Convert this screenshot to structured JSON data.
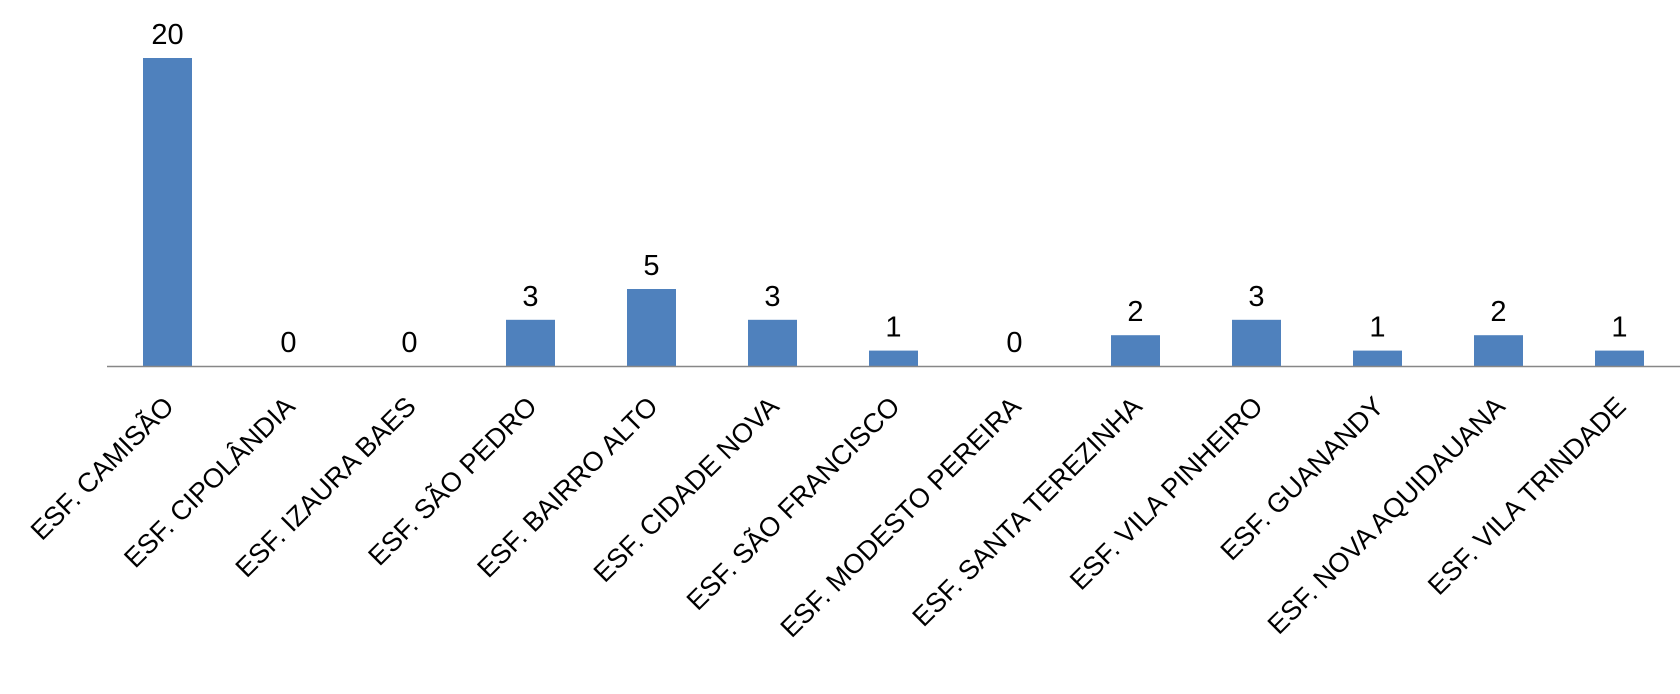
{
  "chart_data": {
    "type": "bar",
    "categories": [
      "ESF. CAMISÃO",
      "ESF. CIPOLÂNDIA",
      "ESF. IZAURA BAES",
      "ESF. SÃO PEDRO",
      "ESF. BAIRRO ALTO",
      "ESF. CIDADE NOVA",
      "ESF. SÃO FRANCISCO",
      "ESF. MODESTO PEREIRA",
      "ESF. SANTA TEREZINHA",
      "ESF. VILA PINHEIRO",
      "ESF. GUANANDY",
      "ESF. NOVA AQUIDAUANA",
      "ESF. VILA TRINDADE"
    ],
    "values": [
      20,
      0,
      0,
      3,
      5,
      3,
      1,
      0,
      2,
      3,
      1,
      2,
      1
    ],
    "data_labels": [
      "20",
      "0",
      "0",
      "3",
      "5",
      "3",
      "1",
      "0",
      "2",
      "3",
      "1",
      "2",
      "1"
    ],
    "ylim": [
      0,
      20
    ],
    "grid": false,
    "legend": "none",
    "bar_color": "#4F81BD",
    "axis_color": "#878787"
  }
}
